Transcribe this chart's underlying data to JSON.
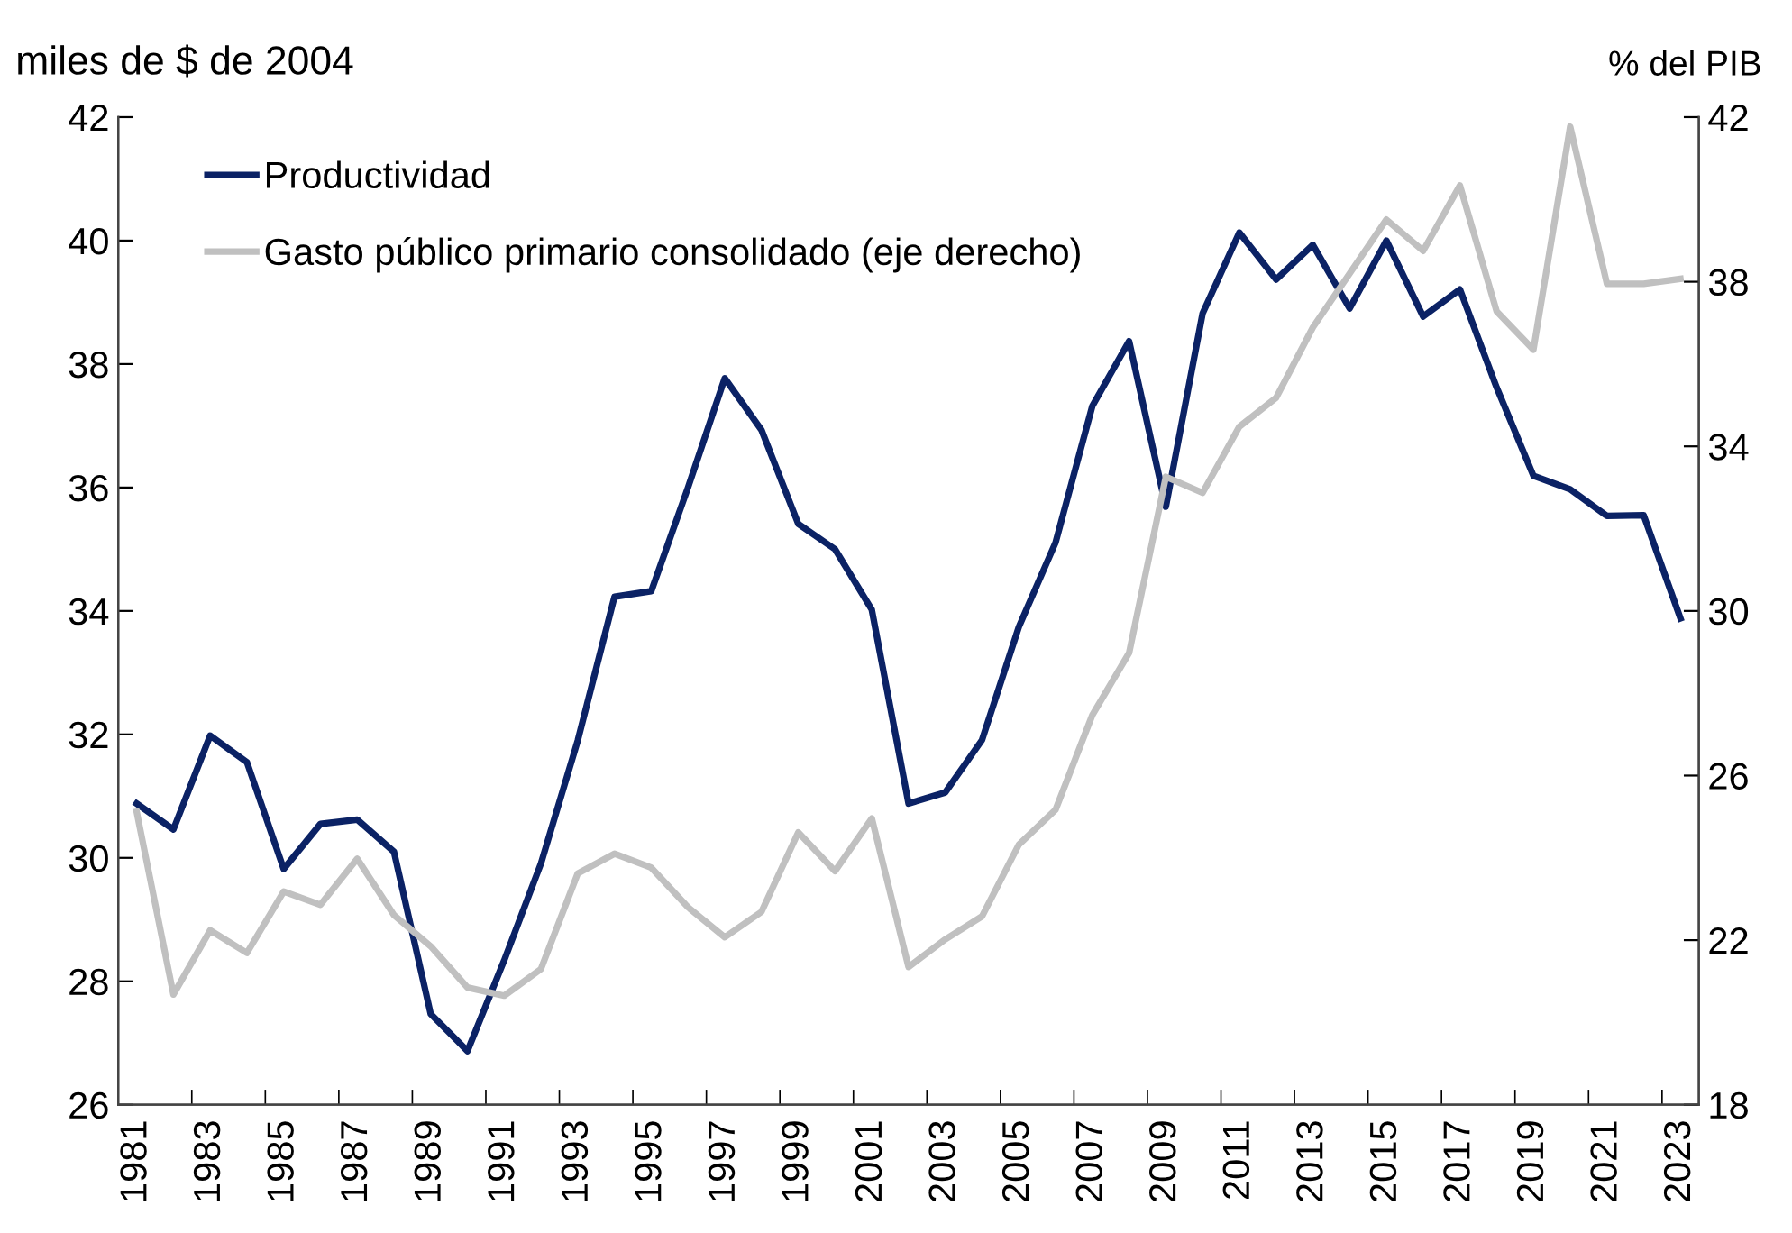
{
  "chart_data": {
    "type": "line",
    "categories": [
      "1981",
      null,
      "1983",
      null,
      "1985",
      null,
      "1987",
      null,
      "1989",
      null,
      "1991",
      null,
      "1993",
      null,
      "1995",
      null,
      "1997",
      null,
      "1999",
      null,
      "2001",
      null,
      "2003",
      null,
      "2005",
      null,
      "2007",
      null,
      "2009",
      null,
      "2011",
      null,
      "2013",
      null,
      "2015",
      null,
      "2017",
      null,
      "2019",
      null,
      "2021",
      null,
      "2023"
    ],
    "series": [
      {
        "name": "Productividad",
        "color": "#0b2265",
        "values": [
          30.88,
          30.46,
          31.98,
          31.55,
          29.82,
          30.55,
          30.62,
          30.1,
          27.47,
          26.87,
          28.34,
          29.91,
          31.9,
          34.23,
          34.32,
          36.0,
          37.77,
          36.93,
          35.41,
          35.0,
          34.02,
          30.88,
          31.06,
          31.91,
          33.74,
          35.11,
          37.32,
          38.37,
          35.69,
          38.82,
          40.13,
          39.37,
          39.93,
          38.9,
          40.0,
          38.77,
          39.21,
          37.62,
          36.19,
          35.97,
          35.54,
          35.55,
          33.88
        ]
      },
      {
        "name": "Gasto público primario consolidado (eje derecho)",
        "color": "#c0c0c0",
        "axis": "y2",
        "values": [
          25.12,
          20.68,
          22.24,
          21.69,
          23.18,
          22.86,
          23.98,
          22.61,
          21.85,
          20.85,
          20.65,
          21.3,
          23.62,
          24.1,
          23.76,
          22.8,
          22.07,
          22.69,
          24.62,
          23.68,
          24.96,
          21.35,
          22.02,
          22.58,
          24.32,
          25.17,
          27.47,
          28.98,
          33.26,
          32.87,
          34.48,
          35.18,
          36.89,
          38.2,
          39.51,
          38.75,
          40.34,
          37.28,
          36.35,
          41.77,
          37.95,
          37.95,
          38.07
        ]
      }
    ],
    "ylabel": "miles de $ de 2004",
    "y2label": "% del PIB",
    "ylim": [
      26,
      42
    ],
    "yticks": [
      26,
      28,
      30,
      32,
      34,
      36,
      38,
      40,
      42
    ],
    "y2lim": [
      18,
      42
    ],
    "y2ticks": [
      18,
      22,
      26,
      30,
      34,
      38,
      42
    ],
    "grid": false,
    "legend": "top left",
    "marker": "none",
    "line_style": "solid"
  }
}
